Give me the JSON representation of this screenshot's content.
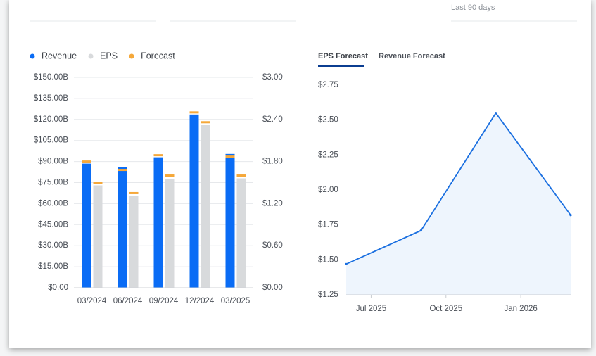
{
  "header_note": "Last 90 days",
  "tabs": [
    "EPS Forecast",
    "Revenue Forecast"
  ],
  "chart_data": [
    {
      "type": "bar",
      "categories": [
        "03/2024",
        "06/2024",
        "09/2024",
        "12/2024",
        "03/2025"
      ],
      "series": [
        {
          "name": "Revenue",
          "color": "#0a6cf5",
          "values": [
            88.5,
            86,
            93,
            123.5,
            95.4
          ]
        },
        {
          "name": "EPS",
          "color": "#d8dadc",
          "axis": "y2",
          "values": [
            1.46,
            1.31,
            1.55,
            2.32,
            1.56
          ]
        },
        {
          "name": "Forecast",
          "color": "#f5a83a",
          "values": [
            90,
            84,
            94.5,
            125,
            93.5
          ],
          "values_y2": [
            1.5,
            1.35,
            1.6,
            2.36,
            1.6
          ]
        }
      ],
      "ylim": [
        0,
        150
      ],
      "yticks": [
        {
          "value": 0,
          "label": "$0.00"
        },
        {
          "value": 15,
          "label": "$15.00B"
        },
        {
          "value": 30,
          "label": "$30.00B"
        },
        {
          "value": 45,
          "label": "$45.00B"
        },
        {
          "value": 60,
          "label": "$60.00B"
        },
        {
          "value": 75,
          "label": "$75.00B"
        },
        {
          "value": 90,
          "label": "$90.00B"
        },
        {
          "value": 105,
          "label": "$105.00B"
        },
        {
          "value": 120,
          "label": "$120.00B"
        },
        {
          "value": 135,
          "label": "$135.00B"
        },
        {
          "value": 150,
          "label": "$150.00B"
        }
      ],
      "y2lim": [
        0,
        3
      ],
      "y2ticks": [
        {
          "value": 0,
          "label": "$0.00"
        },
        {
          "value": 0.6,
          "label": "$0.60"
        },
        {
          "value": 1.2,
          "label": "$1.20"
        },
        {
          "value": 1.8,
          "label": "$1.80"
        },
        {
          "value": 2.4,
          "label": "$2.40"
        },
        {
          "value": 3,
          "label": "$3.00"
        }
      ],
      "grid": true,
      "legend": "top-left"
    },
    {
      "type": "line",
      "x": [
        "2025-06",
        "2025-09",
        "2025-12",
        "2026-03"
      ],
      "values": [
        1.47,
        1.71,
        2.55,
        1.82
      ],
      "color": "#1a6fe0",
      "area": true,
      "xlim": [
        "2025-06",
        "2026-03"
      ],
      "xticks": [
        {
          "value": "2025-07",
          "label": "Jul 2025"
        },
        {
          "value": "2025-10",
          "label": "Oct 2025"
        },
        {
          "value": "2026-01",
          "label": "Jan 2026"
        }
      ],
      "ylim": [
        1.25,
        2.75
      ],
      "yticks": [
        {
          "value": 1.25,
          "label": "$1.25"
        },
        {
          "value": 1.5,
          "label": "$1.50"
        },
        {
          "value": 1.75,
          "label": "$1.75"
        },
        {
          "value": 2,
          "label": "$2.00"
        },
        {
          "value": 2.25,
          "label": "$2.25"
        },
        {
          "value": 2.5,
          "label": "$2.50"
        },
        {
          "value": 2.75,
          "label": "$2.75"
        }
      ]
    }
  ]
}
